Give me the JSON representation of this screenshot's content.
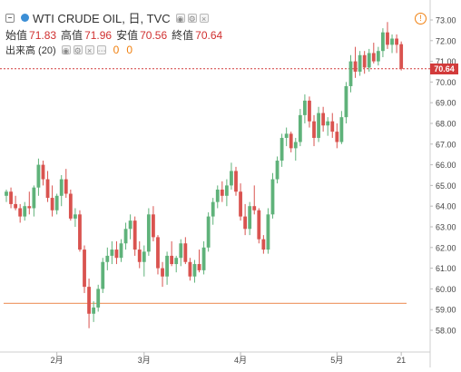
{
  "legend": {
    "symbol": "WTI CRUDE OIL, 日, TVC",
    "ohlc": [
      {
        "label": "始值",
        "value": "71.83"
      },
      {
        "label": "高值",
        "value": "71.96"
      },
      {
        "label": "安值",
        "value": "70.56"
      },
      {
        "label": "終值",
        "value": "70.64"
      }
    ],
    "volume_label": "出来高 (20)",
    "volume_values": [
      "0",
      "0"
    ]
  },
  "colors": {
    "up": "#5fb27a",
    "down": "#d9534f",
    "support_line": "#f0a070",
    "price_line": "#d23b3b",
    "tag_bg": "#d23b3b"
  },
  "price_tag": "70.64",
  "alert_icon": "exclamation-alert-icon",
  "chart_data": {
    "type": "candlestick",
    "title": "WTI CRUDE OIL, 日, TVC",
    "xlabel": "",
    "ylabel": "",
    "ylim": [
      57.0,
      73.5
    ],
    "yticks": [
      "58.00",
      "59.00",
      "60.00",
      "61.00",
      "62.00",
      "63.00",
      "64.00",
      "65.00",
      "66.00",
      "67.00",
      "68.00",
      "69.00",
      "70.00",
      "71.00",
      "72.00",
      "73.00"
    ],
    "xticks": [
      {
        "label": "2月",
        "index": 11
      },
      {
        "label": "3月",
        "index": 30
      },
      {
        "label": "4月",
        "index": 51
      },
      {
        "label": "5月",
        "index": 72
      },
      {
        "label": "21",
        "index": 86
      }
    ],
    "current_price": 70.64,
    "horizontal_line": 59.3,
    "ohlc": [
      [
        64.5,
        64.8,
        64.2,
        64.7
      ],
      [
        64.7,
        64.9,
        63.9,
        64.1
      ],
      [
        64.1,
        64.5,
        63.8,
        63.9
      ],
      [
        63.9,
        64.1,
        63.2,
        63.5
      ],
      [
        63.5,
        64.2,
        63.3,
        64.0
      ],
      [
        64.0,
        64.7,
        63.6,
        63.9
      ],
      [
        63.9,
        65.0,
        63.5,
        64.9
      ],
      [
        64.9,
        66.3,
        64.5,
        66.0
      ],
      [
        66.0,
        66.2,
        65.0,
        65.3
      ],
      [
        65.3,
        65.7,
        64.2,
        64.4
      ],
      [
        64.4,
        65.0,
        63.5,
        63.8
      ],
      [
        63.8,
        64.6,
        63.6,
        64.5
      ],
      [
        64.5,
        65.5,
        64.0,
        65.3
      ],
      [
        65.3,
        65.8,
        64.4,
        64.6
      ],
      [
        64.6,
        64.8,
        63.3,
        63.4
      ],
      [
        63.4,
        63.9,
        63.0,
        63.6
      ],
      [
        63.6,
        63.8,
        61.8,
        61.9
      ],
      [
        61.9,
        62.1,
        59.8,
        60.1
      ],
      [
        60.1,
        60.5,
        58.1,
        58.8
      ],
      [
        58.8,
        59.4,
        58.4,
        59.1
      ],
      [
        59.1,
        60.2,
        58.9,
        60.0
      ],
      [
        60.0,
        61.5,
        59.8,
        61.3
      ],
      [
        61.3,
        62.0,
        60.9,
        61.6
      ],
      [
        61.6,
        62.3,
        61.2,
        61.9
      ],
      [
        61.9,
        62.3,
        61.2,
        61.5
      ],
      [
        61.5,
        62.4,
        61.3,
        62.2
      ],
      [
        62.2,
        63.2,
        61.9,
        62.9
      ],
      [
        62.9,
        63.6,
        62.4,
        63.3
      ],
      [
        63.3,
        63.5,
        61.6,
        61.9
      ],
      [
        61.9,
        62.3,
        61.0,
        61.3
      ],
      [
        61.3,
        62.1,
        60.6,
        61.8
      ],
      [
        61.8,
        63.9,
        61.6,
        63.6
      ],
      [
        63.6,
        64.0,
        62.3,
        62.5
      ],
      [
        62.5,
        62.6,
        60.7,
        61.0
      ],
      [
        61.0,
        61.3,
        60.1,
        60.6
      ],
      [
        60.6,
        61.8,
        60.2,
        61.6
      ],
      [
        61.6,
        62.3,
        61.1,
        61.2
      ],
      [
        61.2,
        61.6,
        60.8,
        61.5
      ],
      [
        61.5,
        62.4,
        61.1,
        62.2
      ],
      [
        62.2,
        62.5,
        61.2,
        61.3
      ],
      [
        61.3,
        61.5,
        60.4,
        60.6
      ],
      [
        60.6,
        61.4,
        60.3,
        61.2
      ],
      [
        61.2,
        61.9,
        60.8,
        60.9
      ],
      [
        60.9,
        62.3,
        60.7,
        62.0
      ],
      [
        62.0,
        63.7,
        61.8,
        63.5
      ],
      [
        63.5,
        64.4,
        63.1,
        64.2
      ],
      [
        64.2,
        65.0,
        63.9,
        64.8
      ],
      [
        64.8,
        65.2,
        64.2,
        64.5
      ],
      [
        64.5,
        65.3,
        64.0,
        65.0
      ],
      [
        65.0,
        66.1,
        64.8,
        65.7
      ],
      [
        65.7,
        65.9,
        64.5,
        64.7
      ],
      [
        64.7,
        65.1,
        63.3,
        63.5
      ],
      [
        63.5,
        64.1,
        62.6,
        62.9
      ],
      [
        62.9,
        64.2,
        62.6,
        64.0
      ],
      [
        64.0,
        65.0,
        63.6,
        63.8
      ],
      [
        63.8,
        63.9,
        62.2,
        62.4
      ],
      [
        62.4,
        62.6,
        61.7,
        61.9
      ],
      [
        61.9,
        63.9,
        61.7,
        63.6
      ],
      [
        63.6,
        65.6,
        63.4,
        65.3
      ],
      [
        65.3,
        66.4,
        65.1,
        66.2
      ],
      [
        66.2,
        67.5,
        65.9,
        67.3
      ],
      [
        67.3,
        67.8,
        66.9,
        67.5
      ],
      [
        67.5,
        67.6,
        66.6,
        66.8
      ],
      [
        66.8,
        67.3,
        66.2,
        67.1
      ],
      [
        67.1,
        68.7,
        66.9,
        68.4
      ],
      [
        68.4,
        69.4,
        68.0,
        69.1
      ],
      [
        69.1,
        69.3,
        67.8,
        68.1
      ],
      [
        68.1,
        68.4,
        66.9,
        67.3
      ],
      [
        67.3,
        68.8,
        67.1,
        68.5
      ],
      [
        68.5,
        68.8,
        67.6,
        67.9
      ],
      [
        67.9,
        68.3,
        67.4,
        68.1
      ],
      [
        68.1,
        68.5,
        67.3,
        67.6
      ],
      [
        67.6,
        68.0,
        66.8,
        67.1
      ],
      [
        67.1,
        68.6,
        67.0,
        68.3
      ],
      [
        68.3,
        70.0,
        68.0,
        69.8
      ],
      [
        69.8,
        71.3,
        69.5,
        71.0
      ],
      [
        71.0,
        71.7,
        70.2,
        70.5
      ],
      [
        70.5,
        71.5,
        70.3,
        71.3
      ],
      [
        71.3,
        71.5,
        70.4,
        70.7
      ],
      [
        70.7,
        71.6,
        70.5,
        71.4
      ],
      [
        71.4,
        71.9,
        70.9,
        71.0
      ],
      [
        71.0,
        71.7,
        70.8,
        71.5
      ],
      [
        71.5,
        72.6,
        71.2,
        72.4
      ],
      [
        72.4,
        72.9,
        71.6,
        71.8
      ],
      [
        71.8,
        72.3,
        71.4,
        72.1
      ],
      [
        72.1,
        72.3,
        71.4,
        71.8
      ],
      [
        71.83,
        71.96,
        70.56,
        70.64
      ]
    ]
  }
}
